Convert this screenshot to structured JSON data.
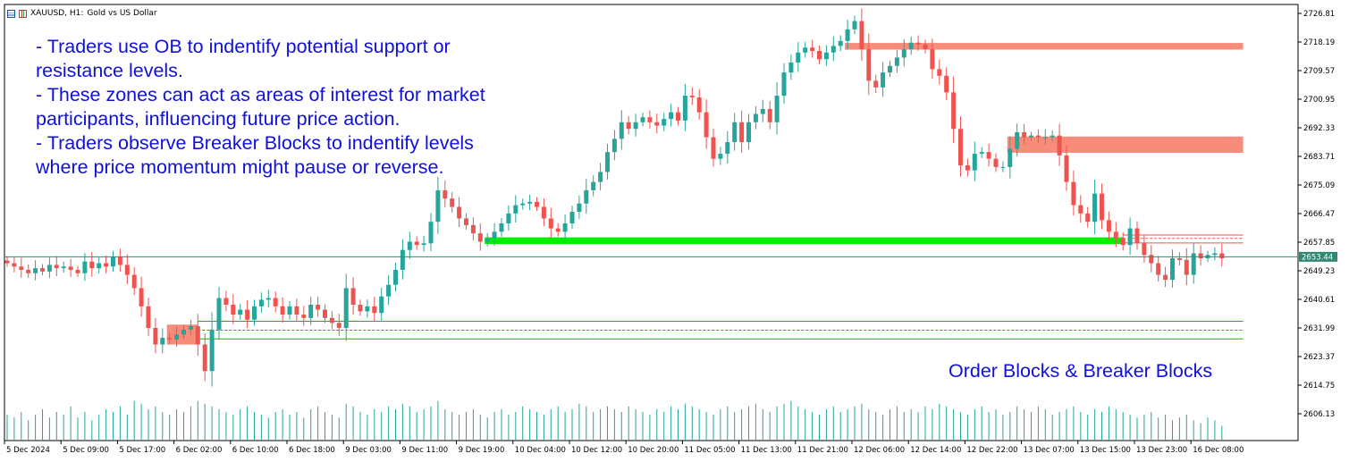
{
  "window": {
    "symbol_label": "XAUUSD, H1:",
    "symbol_desc": "Gold vs US Dollar",
    "icons": [
      "chart-grid-icon",
      "bars-icon"
    ]
  },
  "annotations": {
    "lines": [
      "- Traders use OB to indentify potential support or",
      "resistance levels.",
      "- These zones can act as areas of interest for market",
      "participants, influencing future price action.",
      "- Traders observe Breaker Blocks to indentify levels",
      "where price momentum might pause or reverse."
    ],
    "caption": "Order Blocks & Breaker Blocks"
  },
  "colors": {
    "bull": "#26a69a",
    "bear": "#ef5350",
    "order_block": "#f98b7b",
    "breaker_block": "#00ee00",
    "current_line": "#2e8b73",
    "text_blue": "#1010dd"
  },
  "chart_data": {
    "type": "candlestick",
    "price_axis": {
      "ticks": [
        2726.81,
        2718.19,
        2709.57,
        2700.95,
        2692.33,
        2683.71,
        2675.09,
        2666.47,
        2657.85,
        2649.23,
        2640.61,
        2631.99,
        2623.37,
        2614.75,
        2606.13
      ],
      "range": [
        2604.5,
        2730.0
      ]
    },
    "current_price": 2653.44,
    "time_axis": {
      "labels": [
        "5 Dec 2024",
        "5 Dec 09:00",
        "5 Dec 17:00",
        "6 Dec 02:00",
        "6 Dec 10:00",
        "6 Dec 18:00",
        "9 Dec 03:00",
        "9 Dec 11:00",
        "9 Dec 19:00",
        "10 Dec 04:00",
        "10 Dec 12:00",
        "10 Dec 20:00",
        "11 Dec 05:00",
        "11 Dec 13:00",
        "11 Dec 21:00",
        "12 Dec 06:00",
        "12 Dec 14:00",
        "12 Dec 22:00",
        "13 Dec 07:00",
        "13 Dec 15:00",
        "13 Dec 23:00",
        "16 Dec 08:00"
      ],
      "label_index": [
        0,
        8,
        16,
        24,
        32,
        40,
        48,
        56,
        64,
        72,
        80,
        88,
        96,
        104,
        112,
        120,
        128,
        136,
        144,
        152,
        160,
        168
      ]
    },
    "closes": [
      2651.5,
      2650.5,
      2649.5,
      2648.5,
      2650.0,
      2649.0,
      2651.0,
      2650.0,
      2650.5,
      2649.5,
      2648.5,
      2652.0,
      2650.0,
      2651.5,
      2650.5,
      2653.5,
      2651.0,
      2648.0,
      2644.0,
      2638.5,
      2632.0,
      2627.0,
      2629.0,
      2628.5,
      2630.0,
      2631.5,
      2632.5,
      2627.0,
      2619.0,
      2631.5,
      2641.0,
      2639.0,
      2636.0,
      2637.5,
      2634.5,
      2638.5,
      2640.5,
      2641.0,
      2638.5,
      2636.0,
      2638.5,
      2636.0,
      2635.0,
      2639.0,
      2637.5,
      2635.0,
      2633.5,
      2632.0,
      2644.0,
      2639.0,
      2637.0,
      2638.5,
      2636.5,
      2641.5,
      2645.0,
      2649.5,
      2655.5,
      2658.0,
      2657.0,
      2657.5,
      2664.0,
      2673.5,
      2671.0,
      2668.5,
      2665.0,
      2663.0,
      2660.5,
      2658.0,
      2659.0,
      2661.0,
      2663.5,
      2666.5,
      2669.0,
      2669.5,
      2670.0,
      2668.5,
      2665.0,
      2662.0,
      2661.0,
      2663.5,
      2667.0,
      2669.5,
      2673.5,
      2676.0,
      2679.0,
      2685.0,
      2689.0,
      2694.0,
      2692.0,
      2694.0,
      2695.5,
      2694.0,
      2693.0,
      2695.0,
      2697.0,
      2694.5,
      2702.0,
      2701.5,
      2697.0,
      2689.5,
      2683.0,
      2684.5,
      2688.0,
      2694.0,
      2688.0,
      2694.0,
      2696.5,
      2698.0,
      2694.0,
      2702.0,
      2709.0,
      2712.0,
      2715.0,
      2716.5,
      2715.5,
      2713.0,
      2715.0,
      2717.0,
      2718.5,
      2722.0,
      2724.5,
      2716.0,
      2706.5,
      2704.5,
      2709.0,
      2711.0,
      2713.5,
      2716.0,
      2718.0,
      2717.5,
      2716.0,
      2710.0,
      2708.0,
      2703.0,
      2692.0,
      2681.0,
      2679.5,
      2684.5,
      2685.0,
      2683.0,
      2680.5,
      2680.5,
      2686.0,
      2691.0,
      2689.5,
      2690.0,
      2689.5,
      2689.5,
      2690.0,
      2684.0,
      2676.0,
      2669.0,
      2666.5,
      2664.0,
      2672.5,
      2664.5,
      2661.0,
      2659.0,
      2657.0,
      2662.0,
      2657.5,
      2654.0,
      2651.5,
      2648.0,
      2646.5,
      2653.0,
      2652.5,
      2648.0,
      2654.5,
      2653.0,
      2654.0,
      2654.5,
      2653.0
    ],
    "volumes": [
      9,
      8,
      10,
      7,
      9,
      11,
      8,
      10,
      9,
      12,
      8,
      10,
      7,
      9,
      11,
      10,
      12,
      9,
      14,
      13,
      11,
      12,
      10,
      9,
      11,
      10,
      12,
      14,
      13,
      12,
      11,
      10,
      9,
      11,
      12,
      10,
      9,
      8,
      10,
      11,
      9,
      10,
      8,
      11,
      12,
      10,
      9,
      8,
      13,
      12,
      10,
      9,
      11,
      10,
      12,
      11,
      13,
      12,
      10,
      11,
      12,
      14,
      11,
      10,
      9,
      10,
      11,
      9,
      8,
      10,
      11,
      9,
      10,
      12,
      11,
      10,
      9,
      11,
      12,
      10,
      11,
      13,
      12,
      10,
      11,
      12,
      11,
      10,
      12,
      11,
      10,
      9,
      11,
      10,
      12,
      11,
      13,
      12,
      11,
      10,
      9,
      11,
      12,
      10,
      11,
      12,
      13,
      11,
      10,
      12,
      13,
      14,
      12,
      11,
      10,
      9,
      11,
      12,
      10,
      11,
      12,
      13,
      11,
      10,
      9,
      11,
      12,
      10,
      11,
      10,
      12,
      11,
      13,
      12,
      11,
      10,
      9,
      11,
      12,
      10,
      11,
      9,
      10,
      12,
      11,
      10,
      12,
      11,
      9,
      10,
      11,
      12,
      10,
      9,
      11,
      10,
      12,
      11,
      10,
      9,
      8,
      9,
      10,
      8,
      9,
      7,
      8,
      9,
      7,
      6,
      8,
      7,
      5
    ],
    "order_blocks": [
      {
        "from_index": 119,
        "to_index": 175,
        "top": 2717.9,
        "bottom": 2715.9
      },
      {
        "from_index": 142,
        "to_index": 175,
        "top": 2689.7,
        "bottom": 2684.8
      },
      {
        "from_index": 23,
        "to_index": 27,
        "top": 2633.0,
        "bottom": 2627.0
      }
    ],
    "breaker_blocks": [
      {
        "from_index": 68,
        "to_index": 158,
        "top": 2659.3,
        "bottom": 2657.3
      }
    ],
    "levels": [
      {
        "price": 2660.0,
        "from_index": 158,
        "to_index": 175,
        "style": "solid",
        "color": "#ef5350"
      },
      {
        "price": 2659.0,
        "from_index": 158,
        "to_index": 175,
        "style": "dashed",
        "color": "#ef5350"
      },
      {
        "price": 2657.6,
        "from_index": 158,
        "to_index": 175,
        "style": "solid",
        "color": "#ef5350"
      },
      {
        "price": 2634.0,
        "from_index": 27,
        "to_index": 175,
        "style": "solid",
        "color": "#00c000"
      },
      {
        "price": 2631.3,
        "from_index": 27,
        "to_index": 175,
        "style": "dashed",
        "color": "#00c000"
      },
      {
        "price": 2628.7,
        "from_index": 27,
        "to_index": 175,
        "style": "solid",
        "color": "#00c000"
      }
    ],
    "grid": false,
    "legend": "none"
  }
}
